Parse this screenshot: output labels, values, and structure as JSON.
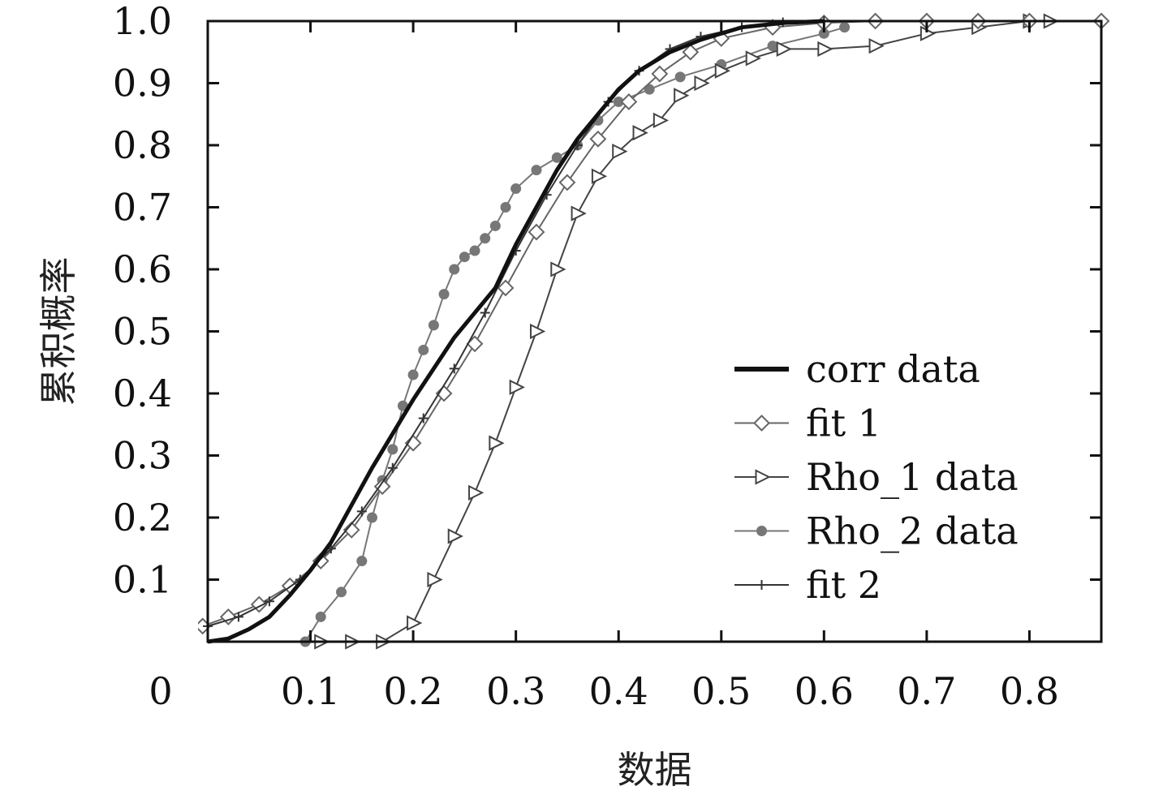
{
  "chart_data": {
    "type": "line",
    "xlabel": "数据",
    "ylabel": "累积概率",
    "xlim": [
      0,
      0.87
    ],
    "ylim": [
      0,
      1.0
    ],
    "x_ticks": [
      0.1,
      0.2,
      0.3,
      0.4,
      0.5,
      0.6,
      0.7,
      0.8
    ],
    "x_tick_labels": [
      "0.1",
      "0.2",
      "0.3",
      "0.4",
      "0.5",
      "0.6",
      "0.7",
      "0.8"
    ],
    "y_ticks": [
      0.1,
      0.2,
      0.3,
      0.4,
      0.5,
      0.6,
      0.7,
      0.8,
      0.9,
      1.0
    ],
    "y_tick_labels": [
      "0.1",
      "0.2",
      "0.3",
      "0.4",
      "0.5",
      "0.6",
      "0.7",
      "0.8",
      "0.9",
      "1.0"
    ],
    "origin_label": "0",
    "legend_position": "bottom-right",
    "grid": false,
    "series": [
      {
        "name": "corr data",
        "color": "#111111",
        "marker": "none",
        "x": [
          0.0,
          0.02,
          0.04,
          0.06,
          0.08,
          0.1,
          0.12,
          0.14,
          0.16,
          0.18,
          0.2,
          0.22,
          0.24,
          0.26,
          0.28,
          0.3,
          0.32,
          0.34,
          0.36,
          0.38,
          0.4,
          0.42,
          0.45,
          0.48,
          0.52,
          0.56,
          0.6
        ],
        "y": [
          0.0,
          0.005,
          0.02,
          0.04,
          0.075,
          0.115,
          0.16,
          0.22,
          0.28,
          0.335,
          0.39,
          0.44,
          0.49,
          0.53,
          0.57,
          0.64,
          0.7,
          0.76,
          0.81,
          0.85,
          0.89,
          0.92,
          0.95,
          0.97,
          0.99,
          0.997,
          1.0
        ]
      },
      {
        "name": "fit 1",
        "color": "#666666",
        "marker": "diamond",
        "x": [
          -0.005,
          0.02,
          0.05,
          0.08,
          0.11,
          0.14,
          0.17,
          0.2,
          0.23,
          0.26,
          0.29,
          0.32,
          0.35,
          0.38,
          0.41,
          0.44,
          0.47,
          0.5,
          0.55,
          0.6,
          0.65,
          0.7,
          0.75,
          0.8,
          0.87
        ],
        "y": [
          0.025,
          0.04,
          0.06,
          0.09,
          0.13,
          0.18,
          0.25,
          0.32,
          0.4,
          0.48,
          0.57,
          0.66,
          0.74,
          0.81,
          0.87,
          0.915,
          0.95,
          0.972,
          0.99,
          0.997,
          1.0,
          1.0,
          1.0,
          1.0,
          1.0
        ]
      },
      {
        "name": "Rho_1 data",
        "color": "#444444",
        "marker": "triangle-right",
        "x": [
          0.11,
          0.14,
          0.17,
          0.2,
          0.22,
          0.24,
          0.26,
          0.28,
          0.3,
          0.32,
          0.34,
          0.36,
          0.38,
          0.4,
          0.42,
          0.44,
          0.46,
          0.48,
          0.5,
          0.53,
          0.56,
          0.6,
          0.65,
          0.7,
          0.75,
          0.8,
          0.82
        ],
        "y": [
          0.0,
          0.0,
          0.0,
          0.03,
          0.1,
          0.17,
          0.24,
          0.32,
          0.41,
          0.5,
          0.6,
          0.69,
          0.75,
          0.79,
          0.82,
          0.84,
          0.88,
          0.9,
          0.92,
          0.94,
          0.955,
          0.955,
          0.96,
          0.98,
          0.99,
          1.0,
          1.0
        ]
      },
      {
        "name": "Rho_2 data",
        "color": "#777777",
        "marker": "circle",
        "x": [
          0.095,
          0.11,
          0.13,
          0.15,
          0.16,
          0.17,
          0.18,
          0.19,
          0.2,
          0.21,
          0.22,
          0.23,
          0.24,
          0.25,
          0.26,
          0.27,
          0.28,
          0.29,
          0.3,
          0.32,
          0.34,
          0.36,
          0.38,
          0.4,
          0.43,
          0.46,
          0.5,
          0.55,
          0.6,
          0.62
        ],
        "y": [
          0.0,
          0.04,
          0.08,
          0.13,
          0.2,
          0.26,
          0.31,
          0.38,
          0.43,
          0.47,
          0.51,
          0.56,
          0.6,
          0.62,
          0.63,
          0.65,
          0.67,
          0.7,
          0.73,
          0.76,
          0.78,
          0.8,
          0.84,
          0.87,
          0.89,
          0.91,
          0.93,
          0.96,
          0.98,
          0.99
        ]
      },
      {
        "name": "fit 2",
        "color": "#333333",
        "marker": "plus",
        "x": [
          0.0,
          0.03,
          0.06,
          0.09,
          0.12,
          0.15,
          0.18,
          0.21,
          0.24,
          0.27,
          0.3,
          0.33,
          0.36,
          0.39,
          0.42,
          0.45,
          0.48,
          0.52,
          0.56,
          0.6
        ],
        "y": [
          0.025,
          0.04,
          0.065,
          0.1,
          0.15,
          0.21,
          0.28,
          0.36,
          0.44,
          0.53,
          0.63,
          0.72,
          0.8,
          0.87,
          0.92,
          0.955,
          0.975,
          0.99,
          0.998,
          1.0
        ]
      }
    ]
  }
}
